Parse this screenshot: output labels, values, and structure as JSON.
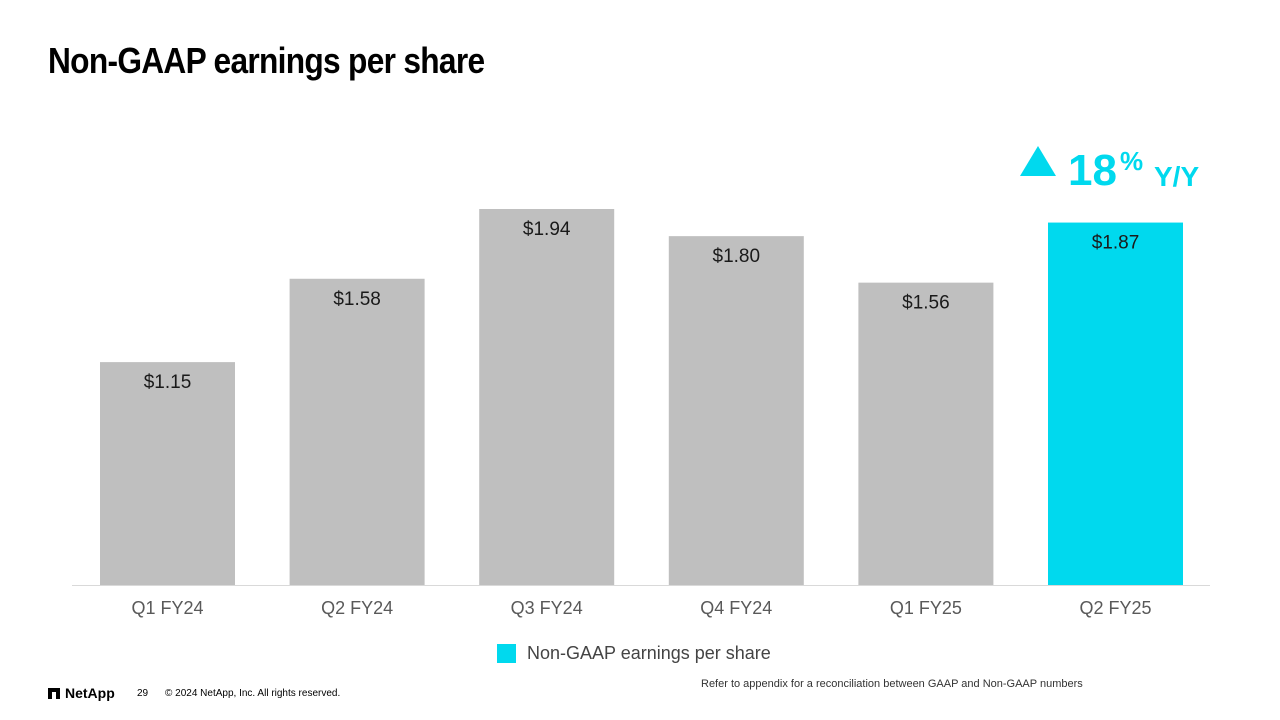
{
  "slide": {
    "title": "Non-GAAP earnings per share",
    "growth": {
      "value": "18",
      "percent_sign": "%",
      "label": "Y/Y",
      "color": "#00d9ee",
      "icon": "up-triangle-icon"
    },
    "legend_label": "Non-GAAP earnings per share",
    "footer": {
      "brand": "NetApp",
      "page_number": "29",
      "copyright": "© 2024 NetApp, Inc. All rights reserved.",
      "note": "Refer to appendix for a reconciliation between GAAP and Non-GAAP numbers"
    }
  },
  "chart_data": {
    "type": "bar",
    "title": "Non-GAAP earnings per share",
    "categories": [
      "Q1 FY24",
      "Q2 FY24",
      "Q3 FY24",
      "Q4 FY24",
      "Q1 FY25",
      "Q2 FY25"
    ],
    "series": [
      {
        "name": "Non-GAAP earnings per share",
        "values": [
          1.15,
          1.58,
          1.94,
          1.8,
          1.56,
          1.87
        ]
      }
    ],
    "data_labels": [
      "$1.15",
      "$1.58",
      "$1.94",
      "$1.80",
      "$1.56",
      "$1.87"
    ],
    "colors": {
      "default": "#bfbfbf",
      "highlight": "#00d9ee",
      "axis": "#d9d9d9",
      "tick_label": "#595959"
    },
    "highlight_index": 5,
    "ylim": [
      0,
      1.94
    ],
    "grid": false,
    "legend_position": "bottom"
  }
}
